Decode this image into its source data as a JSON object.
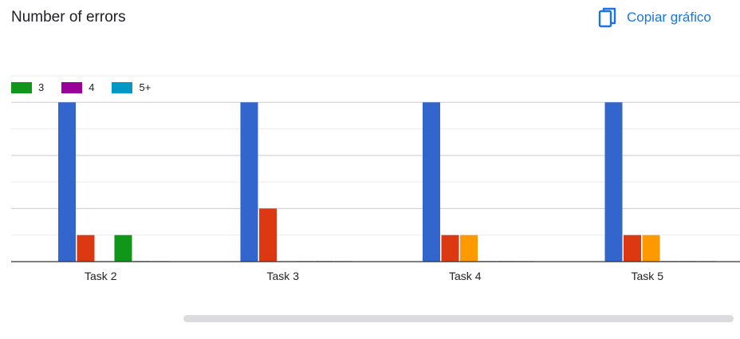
{
  "header": {
    "title": "Number of errors",
    "copy_label": "Copiar gráfico",
    "copy_icon": "copy-icon"
  },
  "legend": {
    "items": [
      {
        "label": "3",
        "color": "#109618"
      },
      {
        "label": "4",
        "color": "#990099"
      },
      {
        "label": "5+",
        "color": "#0099c6"
      }
    ]
  },
  "chart_data": {
    "type": "bar",
    "categories": [
      "Task 2",
      "Task 3",
      "Task 4",
      "Task 5"
    ],
    "series": [
      {
        "color": "#3366cc",
        "values": [
          6,
          6,
          6,
          6
        ]
      },
      {
        "color": "#dc3912",
        "values": [
          1,
          2,
          1,
          1
        ]
      },
      {
        "color": "#ff9900",
        "values": [
          0,
          0,
          1,
          1
        ]
      },
      {
        "name": "3",
        "color": "#109618",
        "values": [
          1,
          0,
          0,
          0
        ]
      },
      {
        "name": "4",
        "color": "#990099",
        "values": [
          0,
          0,
          0,
          0
        ]
      },
      {
        "name": "5+",
        "color": "#0099c6",
        "values": [
          0,
          0,
          0,
          0
        ]
      }
    ],
    "ylim": [
      0,
      7
    ],
    "grid": true,
    "legend_position": "top-left"
  }
}
